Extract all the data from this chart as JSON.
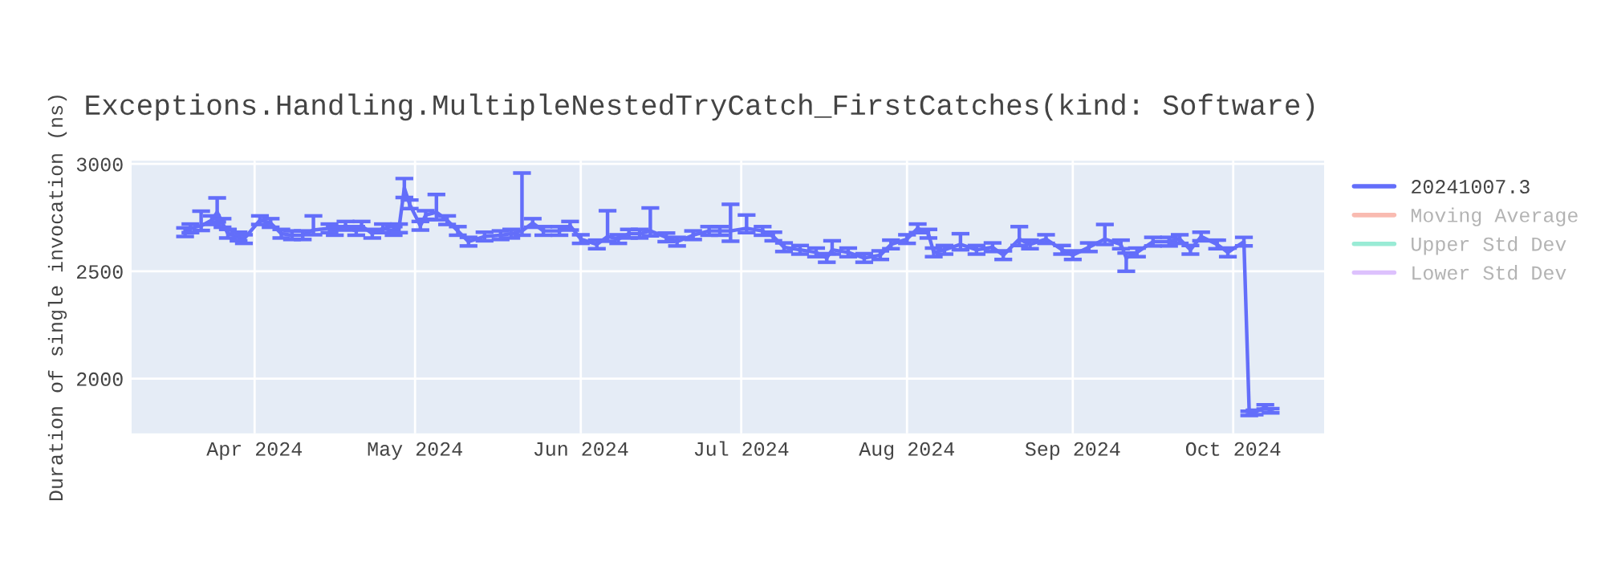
{
  "chart_data": {
    "type": "line",
    "title": "Exceptions.Handling.MultipleNestedTryCatch_FirstCatches(kind: Software)",
    "ylabel": "Duration of single invocation (ns)",
    "xlim": [
      "2024-03-09",
      "2024-10-18"
    ],
    "xticks": [
      {
        "value": "2024-04-01",
        "label": "Apr 2024"
      },
      {
        "value": "2024-05-01",
        "label": "May 2024"
      },
      {
        "value": "2024-06-01",
        "label": "Jun 2024"
      },
      {
        "value": "2024-07-01",
        "label": "Jul 2024"
      },
      {
        "value": "2024-08-01",
        "label": "Aug 2024"
      },
      {
        "value": "2024-09-01",
        "label": "Sep 2024"
      },
      {
        "value": "2024-10-01",
        "label": "Oct 2024"
      }
    ],
    "ylim": [
      1745,
      3015
    ],
    "yticks": [
      2000,
      2500,
      3000
    ],
    "grid": true,
    "legend": "top right",
    "marker": "none",
    "line_style": "solid",
    "series": [
      {
        "name": "20241007.3",
        "color": "#636efa",
        "x": [
          "2024-03-19",
          "2024-03-20",
          "2024-03-22",
          "2024-03-24",
          "2024-03-25",
          "2024-03-26",
          "2024-03-27",
          "2024-03-29",
          "2024-03-30",
          "2024-04-02",
          "2024-04-04",
          "2024-04-06",
          "2024-04-08",
          "2024-04-10",
          "2024-04-12",
          "2024-04-15",
          "2024-04-16",
          "2024-04-18",
          "2024-04-20",
          "2024-04-21",
          "2024-04-23",
          "2024-04-25",
          "2024-04-27",
          "2024-04-28",
          "2024-04-29",
          "2024-04-30",
          "2024-05-02",
          "2024-05-03",
          "2024-05-05",
          "2024-05-07",
          "2024-05-09",
          "2024-05-11",
          "2024-05-14",
          "2024-05-17",
          "2024-05-19",
          "2024-05-21",
          "2024-05-23",
          "2024-05-25",
          "2024-05-28",
          "2024-05-30",
          "2024-06-01",
          "2024-06-04",
          "2024-06-06",
          "2024-06-08",
          "2024-06-10",
          "2024-06-12",
          "2024-06-14",
          "2024-06-17",
          "2024-06-19",
          "2024-06-22",
          "2024-06-25",
          "2024-06-27",
          "2024-06-29",
          "2024-07-02",
          "2024-07-05",
          "2024-07-07",
          "2024-07-09",
          "2024-07-12",
          "2024-07-15",
          "2024-07-17",
          "2024-07-18",
          "2024-07-21",
          "2024-07-24",
          "2024-07-27",
          "2024-07-29",
          "2024-08-01",
          "2024-08-03",
          "2024-08-05",
          "2024-08-06",
          "2024-08-08",
          "2024-08-11",
          "2024-08-14",
          "2024-08-17",
          "2024-08-19",
          "2024-08-22",
          "2024-08-24",
          "2024-08-27",
          "2024-08-30",
          "2024-09-01",
          "2024-09-04",
          "2024-09-07",
          "2024-09-10",
          "2024-09-11",
          "2024-09-13",
          "2024-09-16",
          "2024-09-19",
          "2024-09-21",
          "2024-09-23",
          "2024-09-25",
          "2024-09-28",
          "2024-09-30",
          "2024-10-03",
          "2024-10-04",
          "2024-10-05",
          "2024-10-07",
          "2024-10-08"
        ],
        "values": [
          2682,
          2700,
          2712,
          2738,
          2775,
          2725,
          2675,
          2662,
          2650,
          2738,
          2725,
          2675,
          2668,
          2668,
          2692,
          2700,
          2688,
          2712,
          2688,
          2712,
          2675,
          2700,
          2688,
          2700,
          2888,
          2812,
          2712,
          2762,
          2775,
          2738,
          2688,
          2638,
          2662,
          2668,
          2675,
          2688,
          2725,
          2688,
          2688,
          2712,
          2650,
          2625,
          2662,
          2650,
          2675,
          2675,
          2688,
          2658,
          2638,
          2668,
          2688,
          2688,
          2688,
          2700,
          2688,
          2662,
          2612,
          2600,
          2588,
          2562,
          2600,
          2588,
          2562,
          2575,
          2625,
          2650,
          2700,
          2675,
          2588,
          2600,
          2625,
          2600,
          2612,
          2575,
          2650,
          2625,
          2650,
          2600,
          2575,
          2612,
          2650,
          2625,
          2562,
          2588,
          2638,
          2638,
          2650,
          2600,
          2662,
          2625,
          2588,
          2638,
          1838,
          1842,
          1868,
          1850
        ],
        "errors": [
          20,
          20,
          [
            2690,
            2780
          ],
          20,
          [
            2730,
            2842
          ],
          20,
          20,
          20,
          20,
          20,
          20,
          20,
          20,
          20,
          [
            2670,
            2758
          ],
          20,
          20,
          20,
          20,
          20,
          20,
          20,
          20,
          20,
          [
            2844,
            2932
          ],
          20,
          20,
          20,
          [
            2740,
            2858
          ],
          20,
          20,
          20,
          20,
          20,
          20,
          [
            2668,
            2958
          ],
          20,
          20,
          20,
          20,
          20,
          20,
          [
            2640,
            2782
          ],
          20,
          20,
          20,
          [
            2665,
            2795
          ],
          20,
          20,
          20,
          20,
          20,
          [
            2640,
            2812
          ],
          [
            2680,
            2762
          ],
          20,
          20,
          20,
          20,
          20,
          20,
          [
            2580,
            2642
          ],
          20,
          20,
          20,
          20,
          20,
          20,
          20,
          20,
          20,
          [
            2600,
            2675
          ],
          20,
          20,
          20,
          [
            2620,
            2708
          ],
          20,
          20,
          20,
          20,
          20,
          [
            2625,
            2718
          ],
          20,
          [
            2500,
            2585
          ],
          20,
          20,
          20,
          20,
          20,
          20,
          20,
          20,
          20,
          10,
          10,
          10,
          10
        ]
      },
      {
        "name": "Moving Average",
        "color": "#ef553b"
      },
      {
        "name": "Upper Std Dev",
        "color": "#00cc96"
      },
      {
        "name": "Lower Std Dev",
        "color": "#ab63fa"
      }
    ]
  }
}
